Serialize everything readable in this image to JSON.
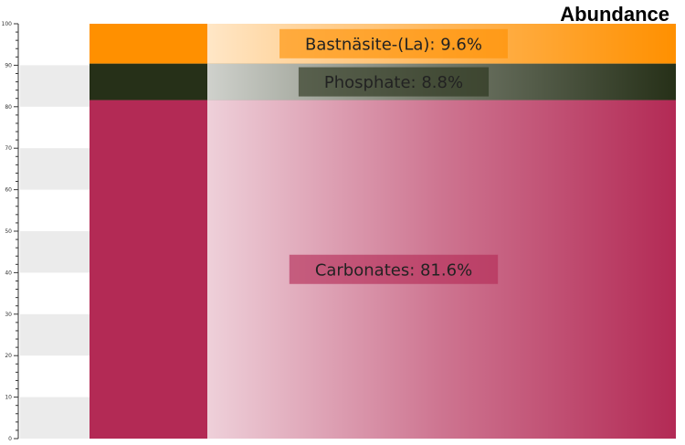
{
  "chart_data": {
    "type": "bar",
    "orientation": "vertical-stacked-100",
    "title": "Abundance",
    "xlabel": "",
    "ylabel": "",
    "ylim": [
      0,
      100
    ],
    "y_ticks_major": [
      0,
      10,
      20,
      30,
      40,
      50,
      60,
      70,
      80,
      90,
      100
    ],
    "grid": "alternating-bands",
    "segments": [
      {
        "name": "Carbonates",
        "value": 81.6,
        "label": "Carbonates: 81.6%",
        "color": "#b32a55"
      },
      {
        "name": "Phosphate",
        "value": 8.8,
        "label": "Phosphate: 8.8%",
        "color": "#263018"
      },
      {
        "name": "Bastnäsite-(La)",
        "value": 9.6,
        "label": "Bastnäsite-(La): 9.6%",
        "color": "#ff9000"
      }
    ]
  }
}
